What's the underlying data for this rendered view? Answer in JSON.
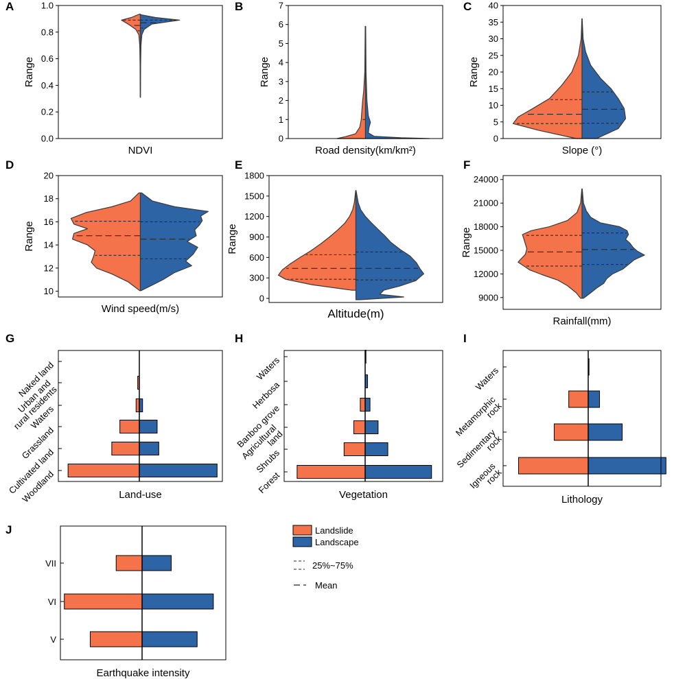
{
  "colors": {
    "landslide": "#f4734a",
    "landscape": "#2d64a5",
    "stroke": "#3a3a3a"
  },
  "legend": {
    "landslide": "Landslide",
    "landscape": "Landscape",
    "quartile": "25%~75%",
    "mean": "Mean"
  },
  "chart_data": [
    {
      "id": "A",
      "type": "violin",
      "xlabel": "NDVI",
      "ylabel": "Range",
      "ylim": [
        0,
        1
      ],
      "yticks": [
        "0.0",
        "0.2",
        "0.4",
        "0.6",
        "0.8",
        "1.0"
      ],
      "ytick_values": [
        0,
        0.2,
        0.4,
        0.6,
        0.8,
        1.0
      ],
      "landslide": {
        "profile": [
          [
            0.31,
            0.002
          ],
          [
            0.55,
            0.004
          ],
          [
            0.7,
            0.008
          ],
          [
            0.78,
            0.02
          ],
          [
            0.82,
            0.06
          ],
          [
            0.86,
            0.16
          ],
          [
            0.89,
            0.25
          ],
          [
            0.91,
            0.12
          ],
          [
            0.935,
            0.01
          ]
        ],
        "q1": 0.81,
        "mean": 0.85,
        "q3": 0.89
      },
      "landscape": {
        "profile": [
          [
            0.31,
            0.002
          ],
          [
            0.55,
            0.004
          ],
          [
            0.7,
            0.008
          ],
          [
            0.78,
            0.02
          ],
          [
            0.82,
            0.05
          ],
          [
            0.86,
            0.15
          ],
          [
            0.89,
            0.52
          ],
          [
            0.91,
            0.2
          ],
          [
            0.93,
            0.01
          ]
        ],
        "q1": 0.83,
        "mean": 0.87,
        "q3": 0.89
      }
    },
    {
      "id": "B",
      "type": "violin",
      "xlabel": "Road density(km/km²)",
      "ylabel": "Range",
      "ylim": [
        0,
        7
      ],
      "yticks": [
        "0",
        "1",
        "2",
        "3",
        "4",
        "5",
        "6",
        "7"
      ],
      "ytick_values": [
        0,
        1,
        2,
        3,
        4,
        5,
        6,
        7
      ],
      "landslide": {
        "profile": [
          [
            0,
            0.4
          ],
          [
            0.1,
            0.28
          ],
          [
            0.25,
            0.14
          ],
          [
            0.6,
            0.08
          ],
          [
            1,
            0.06
          ],
          [
            1.5,
            0.05
          ],
          [
            2,
            0.04
          ],
          [
            2.5,
            0.025
          ],
          [
            3.5,
            0.01
          ],
          [
            5,
            0.006
          ],
          [
            5.9,
            0.004
          ]
        ],
        "q1": 0.0,
        "mean": 0.0,
        "q3": 1.0
      },
      "landscape": {
        "profile": [
          [
            0,
            0.9
          ],
          [
            0.04,
            0.5
          ],
          [
            0.12,
            0.12
          ],
          [
            0.3,
            0.04
          ],
          [
            0.6,
            0.05
          ],
          [
            0.85,
            0.07
          ],
          [
            1.2,
            0.04
          ],
          [
            2,
            0.02
          ],
          [
            3.5,
            0.008
          ],
          [
            5,
            0.005
          ],
          [
            5.9,
            0.003
          ]
        ],
        "q1": 0.0,
        "mean": 0.0,
        "q3": 0.0
      }
    },
    {
      "id": "C",
      "type": "violin",
      "xlabel": "Slope (°)",
      "ylabel": "Range",
      "ylim": [
        0,
        40
      ],
      "yticks": [
        "0",
        "5",
        "10",
        "15",
        "20",
        "25",
        "30",
        "35",
        "40"
      ],
      "ytick_values": [
        0,
        5,
        10,
        15,
        20,
        25,
        30,
        35,
        40
      ],
      "landslide": {
        "profile": [
          [
            0,
            0.08
          ],
          [
            2.5,
            0.6
          ],
          [
            4.5,
            0.95
          ],
          [
            6.5,
            0.88
          ],
          [
            9,
            0.68
          ],
          [
            12,
            0.45
          ],
          [
            16,
            0.28
          ],
          [
            20,
            0.14
          ],
          [
            25,
            0.05
          ],
          [
            30,
            0.012
          ],
          [
            36,
            0.002
          ]
        ],
        "q1": 4.5,
        "mean": 7.3,
        "q3": 11.7
      },
      "landscape": {
        "profile": [
          [
            0,
            0.2
          ],
          [
            3,
            0.5
          ],
          [
            6,
            0.6
          ],
          [
            9,
            0.58
          ],
          [
            12,
            0.5
          ],
          [
            15,
            0.4
          ],
          [
            18,
            0.26
          ],
          [
            22,
            0.12
          ],
          [
            26,
            0.05
          ],
          [
            30,
            0.015
          ],
          [
            36,
            0.002
          ]
        ],
        "q1": 4.6,
        "mean": 8.8,
        "q3": 14.0
      }
    },
    {
      "id": "D",
      "type": "violin",
      "xlabel": "Wind speed(m/s)",
      "ylabel": "Range",
      "ylim": [
        9.5,
        20
      ],
      "yticks": [
        "10",
        "12",
        "14",
        "16",
        "18",
        "20"
      ],
      "ytick_values": [
        10,
        12,
        14,
        16,
        18,
        20
      ],
      "landslide": {
        "profile": [
          [
            10.05,
            0.01
          ],
          [
            10.8,
            0.16
          ],
          [
            11.5,
            0.38
          ],
          [
            12,
            0.58
          ],
          [
            12.5,
            0.65
          ],
          [
            13,
            0.62
          ],
          [
            13.5,
            0.6
          ],
          [
            14,
            0.7
          ],
          [
            14.5,
            0.9
          ],
          [
            15,
            0.88
          ],
          [
            15.4,
            0.7
          ],
          [
            15.8,
            0.88
          ],
          [
            16.3,
            0.92
          ],
          [
            16.8,
            0.72
          ],
          [
            17.3,
            0.38
          ],
          [
            17.8,
            0.13
          ],
          [
            18.5,
            0.02
          ]
        ],
        "q1": 13.1,
        "mean": 14.8,
        "q3": 16.05
      },
      "landscape": {
        "profile": [
          [
            10.05,
            0.01
          ],
          [
            10.5,
            0.15
          ],
          [
            11,
            0.3
          ],
          [
            11.6,
            0.45
          ],
          [
            12.2,
            0.68
          ],
          [
            12.6,
            0.6
          ],
          [
            13.2,
            0.7
          ],
          [
            13.8,
            0.76
          ],
          [
            14.3,
            0.62
          ],
          [
            14.8,
            0.74
          ],
          [
            15.3,
            0.72
          ],
          [
            15.7,
            0.78
          ],
          [
            16.1,
            0.82
          ],
          [
            16.5,
            0.8
          ],
          [
            16.9,
            0.9
          ],
          [
            17.3,
            0.46
          ],
          [
            17.8,
            0.16
          ],
          [
            18.5,
            0.02
          ]
        ],
        "q1": 12.8,
        "mean": 14.5,
        "q3": 16.0
      }
    },
    {
      "id": "E",
      "type": "violin",
      "xlabel": "Altitude(m)",
      "ylabel": "Range",
      "ylim": [
        -60,
        1800
      ],
      "yticks": [
        "0",
        "300",
        "600",
        "900",
        "1200",
        "1500",
        "1800"
      ],
      "ytick_values": [
        0,
        300,
        600,
        900,
        1200,
        1500,
        1800
      ],
      "landslide": {
        "profile": [
          [
            120,
            0.05
          ],
          [
            200,
            0.55
          ],
          [
            280,
            0.88
          ],
          [
            340,
            0.97
          ],
          [
            420,
            0.92
          ],
          [
            500,
            0.83
          ],
          [
            600,
            0.7
          ],
          [
            700,
            0.56
          ],
          [
            800,
            0.44
          ],
          [
            900,
            0.33
          ],
          [
            1000,
            0.23
          ],
          [
            1100,
            0.14
          ],
          [
            1200,
            0.08
          ],
          [
            1300,
            0.04
          ],
          [
            1400,
            0.02
          ],
          [
            1580,
            0.003
          ]
        ],
        "q1": 280,
        "mean": 440,
        "q3": 640
      },
      "landscape": {
        "profile": [
          [
            -20,
            0.05
          ],
          [
            20,
            0.6
          ],
          [
            60,
            0.3
          ],
          [
            120,
            0.35
          ],
          [
            180,
            0.55
          ],
          [
            260,
            0.75
          ],
          [
            360,
            0.85
          ],
          [
            440,
            0.8
          ],
          [
            520,
            0.76
          ],
          [
            620,
            0.68
          ],
          [
            720,
            0.55
          ],
          [
            820,
            0.44
          ],
          [
            920,
            0.36
          ],
          [
            1020,
            0.27
          ],
          [
            1100,
            0.2
          ],
          [
            1200,
            0.12
          ],
          [
            1300,
            0.06
          ],
          [
            1400,
            0.03
          ],
          [
            1580,
            0.003
          ]
        ],
        "q1": 270,
        "mean": 440,
        "q3": 680
      }
    },
    {
      "id": "F",
      "type": "violin",
      "xlabel": "Rainfall(mm)",
      "ylabel": "Range",
      "ylim": [
        7500,
        24500
      ],
      "yticks": [
        "9000",
        "12000",
        "15000",
        "18000",
        "21000",
        "24000"
      ],
      "ytick_values": [
        9000,
        12000,
        15000,
        18000,
        21000,
        24000
      ],
      "landslide": {
        "profile": [
          [
            8900,
            0.02
          ],
          [
            9600,
            0.08
          ],
          [
            10500,
            0.2
          ],
          [
            11200,
            0.33
          ],
          [
            11900,
            0.55
          ],
          [
            12500,
            0.72
          ],
          [
            13000,
            0.8
          ],
          [
            13500,
            0.88
          ],
          [
            14000,
            0.83
          ],
          [
            14500,
            0.78
          ],
          [
            15200,
            0.76
          ],
          [
            15800,
            0.78
          ],
          [
            16400,
            0.8
          ],
          [
            17000,
            0.82
          ],
          [
            17500,
            0.7
          ],
          [
            18000,
            0.45
          ],
          [
            18800,
            0.2
          ],
          [
            19800,
            0.07
          ],
          [
            21000,
            0.02
          ],
          [
            22800,
            0.003
          ]
        ],
        "q1": 13000,
        "mean": 14800,
        "q3": 16900
      },
      "landscape": {
        "profile": [
          [
            8900,
            0.02
          ],
          [
            9600,
            0.12
          ],
          [
            10200,
            0.2
          ],
          [
            10800,
            0.3
          ],
          [
            11400,
            0.34
          ],
          [
            12000,
            0.42
          ],
          [
            12600,
            0.56
          ],
          [
            13200,
            0.64
          ],
          [
            13800,
            0.72
          ],
          [
            14400,
            0.86
          ],
          [
            14900,
            0.76
          ],
          [
            15400,
            0.7
          ],
          [
            15900,
            0.66
          ],
          [
            16400,
            0.6
          ],
          [
            17000,
            0.64
          ],
          [
            17500,
            0.62
          ],
          [
            18000,
            0.52
          ],
          [
            18500,
            0.25
          ],
          [
            19200,
            0.12
          ],
          [
            20000,
            0.06
          ],
          [
            21000,
            0.02
          ],
          [
            22800,
            0.003
          ]
        ],
        "q1": 13200,
        "mean": 15100,
        "q3": 17200
      }
    },
    {
      "id": "G",
      "type": "butterfly_bar",
      "xlabel": "Land-use",
      "categories": [
        "Woodland",
        "Cultivated land",
        "Grassland",
        "Waters",
        "Urban and rural residents",
        "Naked land"
      ],
      "tick_labels": [
        [
          "Woodland"
        ],
        [
          "Cultivated land"
        ],
        [
          "Grassland"
        ],
        [
          "Waters"
        ],
        [
          "Urban and",
          "rural residents"
        ],
        [
          "Naked land"
        ]
      ],
      "landslide": [
        0.44,
        0.17,
        0.12,
        0.02,
        0.01,
        0.0
      ],
      "landscape": [
        0.48,
        0.12,
        0.11,
        0.02,
        0.0,
        0.0
      ],
      "xlim": [
        0.45,
        0.52
      ]
    },
    {
      "id": "H",
      "type": "butterfly_bar",
      "xlabel": "Vegetation",
      "categories": [
        "Forest",
        "Shrubs",
        "Agricultural land",
        "Banboo grove",
        "Herbosa",
        "Waters"
      ],
      "tick_labels": [
        [
          "Forest"
        ],
        [
          "Shrubs"
        ],
        [
          "Agricultural",
          "land"
        ],
        [
          "Banboo grove"
        ],
        [
          "Herbosa"
        ],
        [
          "Waters"
        ]
      ],
      "landslide": [
        0.42,
        0.13,
        0.07,
        0.03,
        0.0,
        0.0
      ],
      "landscape": [
        0.41,
        0.14,
        0.08,
        0.03,
        0.015,
        0.005
      ],
      "xlim": [
        0.43,
        0.45
      ]
    },
    {
      "id": "I",
      "type": "butterfly_bar",
      "xlabel": "Lithology",
      "categories": [
        "Igneous rock",
        "Sedimentary rock",
        "Metamorphic rock",
        "Waters"
      ],
      "tick_labels": [
        [
          "Igneous",
          "rock"
        ],
        [
          "Sedimentary",
          "rock"
        ],
        [
          "Metamorphic",
          "rock"
        ],
        [
          "Waters"
        ]
      ],
      "landslide": [
        0.43,
        0.21,
        0.12,
        0.0
      ],
      "landscape": [
        0.48,
        0.21,
        0.07,
        0.005
      ],
      "xlim": [
        0.44,
        0.5
      ]
    },
    {
      "id": "J",
      "type": "butterfly_bar",
      "xlabel": "Earthquake intensity",
      "categories": [
        "V",
        "VI",
        "VII"
      ],
      "tick_labels": [
        [
          "V"
        ],
        [
          "VI"
        ],
        [
          "VII"
        ]
      ],
      "landslide": [
        0.32,
        0.48,
        0.16
      ],
      "landscape": [
        0.34,
        0.44,
        0.18
      ],
      "xlim": [
        0.48,
        0.52
      ]
    }
  ]
}
